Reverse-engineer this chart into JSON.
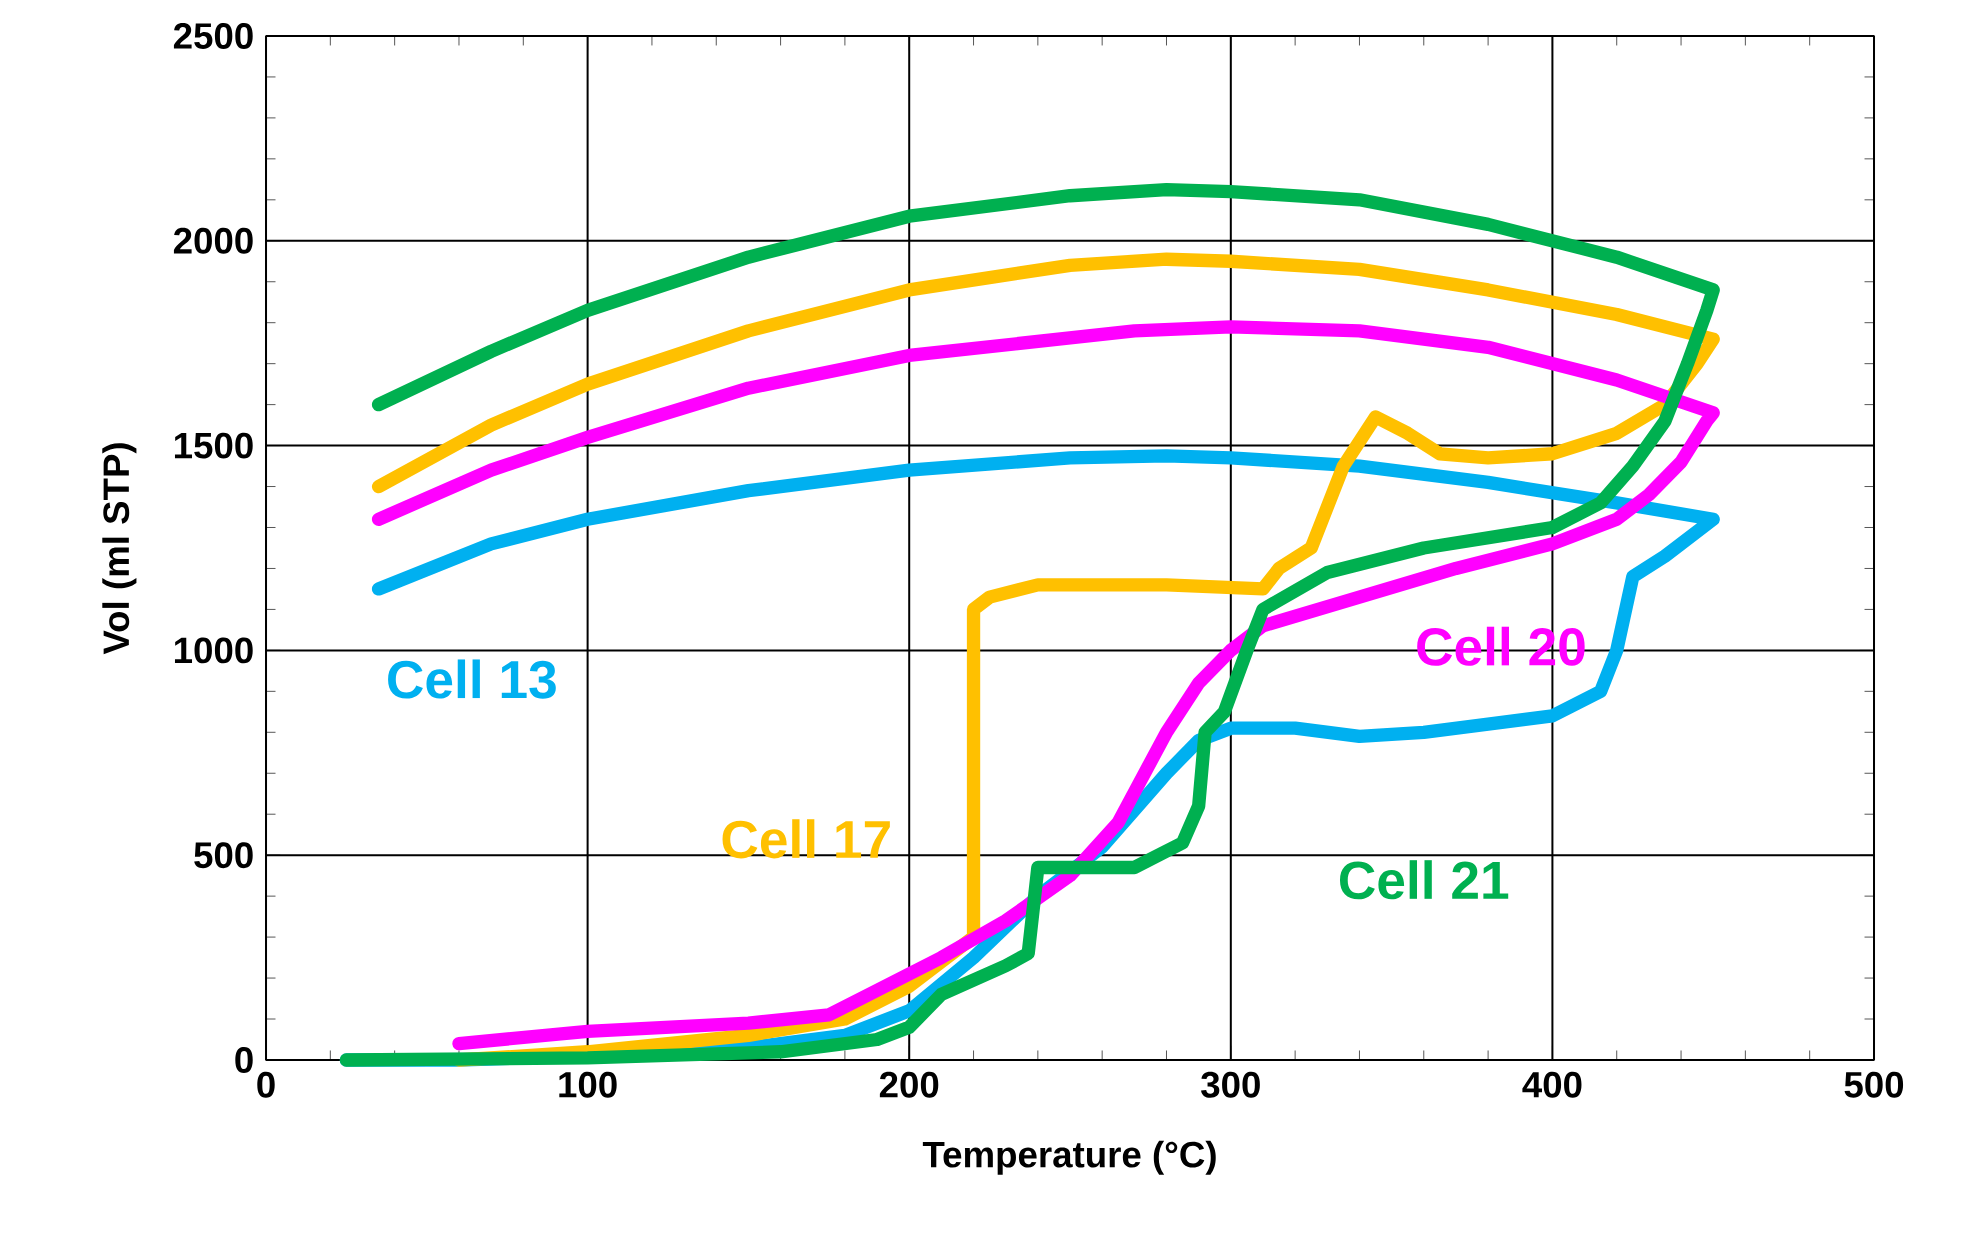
{
  "chart_data": {
    "type": "line",
    "xlabel": "Temperature (°C)",
    "ylabel": "Vol (ml STP)",
    "xlim": [
      0,
      500
    ],
    "ylim": [
      0,
      2500
    ],
    "xticks": [
      0,
      100,
      200,
      300,
      400,
      500
    ],
    "yticks": [
      0,
      500,
      1000,
      1500,
      2000,
      2500
    ],
    "grid": true,
    "marker": "none",
    "line_style": "solid",
    "series": [
      {
        "name": "Cell 13",
        "color": "#00b0f0",
        "x": [
          25,
          60,
          100,
          150,
          180,
          200,
          220,
          240,
          260,
          280,
          290,
          300,
          320,
          340,
          360,
          380,
          400,
          415,
          420,
          425,
          435,
          450,
          420,
          380,
          340,
          300,
          280,
          250,
          200,
          150,
          100,
          70,
          35
        ],
        "values": [
          0,
          0,
          10,
          30,
          60,
          120,
          250,
          400,
          520,
          700,
          780,
          810,
          810,
          790,
          800,
          820,
          840,
          900,
          1000,
          1180,
          1230,
          1320,
          1360,
          1410,
          1450,
          1470,
          1475,
          1470,
          1440,
          1390,
          1320,
          1260,
          1150
        ]
      },
      {
        "name": "Cell 17",
        "color": "#ffc000",
        "x": [
          60,
          100,
          150,
          180,
          200,
          220,
          220,
          225,
          240,
          280,
          310,
          315,
          325,
          335,
          345,
          355,
          365,
          380,
          400,
          420,
          435,
          445,
          450,
          420,
          380,
          340,
          300,
          280,
          250,
          200,
          150,
          100,
          70,
          35
        ],
        "values": [
          0,
          20,
          60,
          100,
          180,
          300,
          1100,
          1130,
          1160,
          1160,
          1150,
          1200,
          1250,
          1450,
          1570,
          1530,
          1480,
          1470,
          1480,
          1530,
          1600,
          1700,
          1760,
          1820,
          1880,
          1930,
          1950,
          1955,
          1940,
          1880,
          1780,
          1650,
          1550,
          1400
        ]
      },
      {
        "name": "Cell 20",
        "color": "#ff00ff",
        "x": [
          60,
          100,
          150,
          175,
          190,
          210,
          230,
          250,
          265,
          280,
          290,
          300,
          310,
          370,
          400,
          420,
          430,
          440,
          448,
          450,
          420,
          380,
          340,
          300,
          270,
          200,
          150,
          100,
          70,
          35
        ],
        "values": [
          40,
          70,
          90,
          110,
          170,
          250,
          340,
          450,
          580,
          800,
          920,
          1000,
          1060,
          1200,
          1260,
          1320,
          1380,
          1460,
          1560,
          1580,
          1660,
          1740,
          1780,
          1790,
          1780,
          1720,
          1640,
          1520,
          1440,
          1320
        ]
      },
      {
        "name": "Cell 21",
        "color": "#00b050",
        "x": [
          25,
          100,
          160,
          190,
          200,
          210,
          230,
          237,
          240,
          260,
          270,
          285,
          290,
          292,
          298,
          305,
          310,
          330,
          360,
          400,
          415,
          425,
          435,
          442,
          448,
          450,
          420,
          380,
          340,
          300,
          280,
          250,
          200,
          150,
          100,
          70,
          35
        ],
        "values": [
          0,
          5,
          20,
          50,
          80,
          160,
          230,
          260,
          470,
          470,
          470,
          530,
          620,
          800,
          850,
          1000,
          1100,
          1190,
          1250,
          1300,
          1360,
          1450,
          1560,
          1700,
          1830,
          1880,
          1960,
          2040,
          2100,
          2120,
          2125,
          2110,
          2060,
          1960,
          1830,
          1730,
          1600
        ]
      }
    ]
  }
}
